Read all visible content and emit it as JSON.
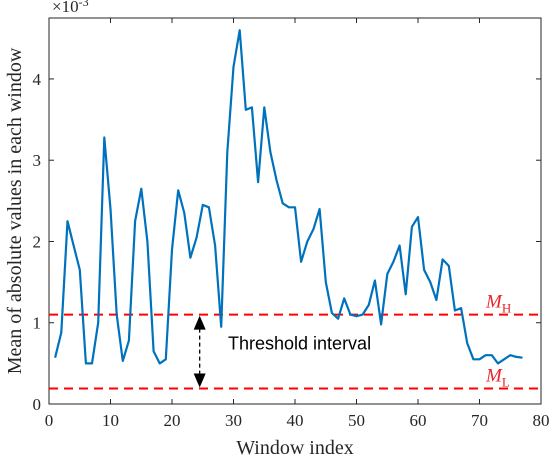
{
  "chart_data": {
    "type": "line",
    "xlabel": "Window index",
    "ylabel": "Mean of absolute values in each window",
    "exponent_label": "×10",
    "exponent_power": "-3",
    "xlim": [
      0,
      80
    ],
    "ylim": [
      0,
      4.75
    ],
    "y_scale_factor": 0.001,
    "xticks": [
      0,
      10,
      20,
      30,
      40,
      50,
      60,
      70,
      80
    ],
    "yticks": [
      0,
      1,
      2,
      3,
      4
    ],
    "grid": false,
    "series": [
      {
        "color": "#0072BD",
        "x": [
          1,
          2,
          3,
          4,
          5,
          6,
          7,
          8,
          9,
          10,
          11,
          12,
          13,
          14,
          15,
          16,
          17,
          18,
          19,
          20,
          21,
          22,
          23,
          24,
          25,
          26,
          27,
          28,
          29,
          30,
          31,
          32,
          33,
          34,
          35,
          36,
          37,
          38,
          39,
          40,
          41,
          42,
          43,
          44,
          45,
          46,
          47,
          48,
          49,
          50,
          51,
          52,
          53,
          54,
          55,
          56,
          57,
          58,
          59,
          60,
          61,
          62,
          63,
          64,
          65,
          66,
          67,
          68,
          69,
          70,
          71,
          72,
          73,
          74,
          75,
          76,
          77
        ],
        "values": [
          0.57,
          0.88,
          2.25,
          1.95,
          1.65,
          0.5,
          0.5,
          1.0,
          3.28,
          2.4,
          1.1,
          0.53,
          0.78,
          2.25,
          2.65,
          2.0,
          0.65,
          0.5,
          0.55,
          1.9,
          2.63,
          2.35,
          1.8,
          2.05,
          2.45,
          2.42,
          1.95,
          0.95,
          3.1,
          4.15,
          4.6,
          3.62,
          3.65,
          2.73,
          3.65,
          3.1,
          2.75,
          2.47,
          2.42,
          2.42,
          1.75,
          2.0,
          2.15,
          2.4,
          1.5,
          1.12,
          1.05,
          1.3,
          1.1,
          1.08,
          1.1,
          1.22,
          1.52,
          0.98,
          1.6,
          1.75,
          1.95,
          1.35,
          2.18,
          2.3,
          1.65,
          1.5,
          1.28,
          1.78,
          1.7,
          1.15,
          1.18,
          0.75,
          0.55,
          0.55,
          0.6,
          0.6,
          0.5,
          0.55,
          0.6,
          0.58,
          0.57
        ]
      }
    ],
    "reference_lines": [
      {
        "name": "M_H",
        "label_main": "M",
        "label_sub": "H",
        "y": 1.1,
        "color": "#FF0000",
        "style": "dashed"
      },
      {
        "name": "M_L",
        "label_main": "M",
        "label_sub": "L",
        "y": 0.19,
        "color": "#FF0000",
        "style": "dashed"
      }
    ],
    "annotation": {
      "text": "Threshold interval",
      "arrow_x": 24.5
    }
  }
}
